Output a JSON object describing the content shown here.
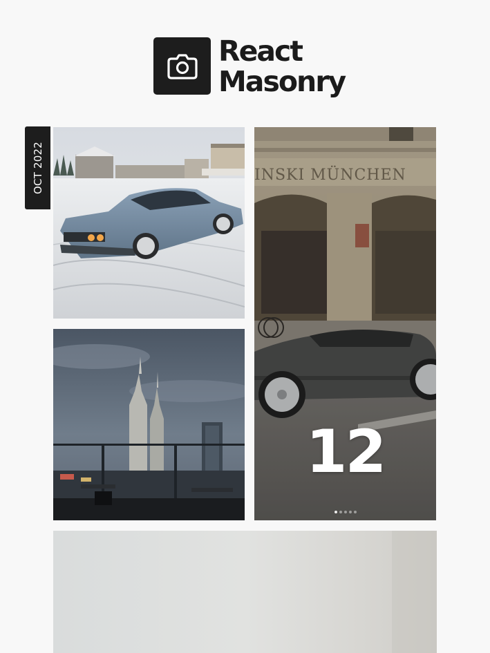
{
  "header": {
    "logo_icon": "camera-icon",
    "title_line1": "React",
    "title_line2": "Masonry"
  },
  "date_tag": "OCT 2022",
  "gallery": {
    "tiles": [
      {
        "subject": "bmw-coupe-snow-photo"
      },
      {
        "subject": "porsche-hotel-photo",
        "count": "12",
        "dots": 5,
        "active_dot": 1
      },
      {
        "subject": "petronas-towers-photo"
      },
      {
        "subject": "grey-wall-photo"
      }
    ]
  },
  "colors": {
    "background": "#f8f8f8",
    "dark": "#1d1d1d",
    "title": "#1b1b1b"
  }
}
